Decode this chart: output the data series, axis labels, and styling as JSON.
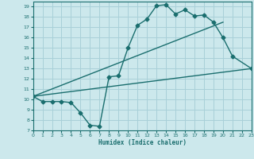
{
  "xlabel": "Humidex (Indice chaleur)",
  "bg_color": "#cce8ec",
  "grid_color": "#a8d0d8",
  "line_color": "#1a6e6e",
  "xlim": [
    0,
    23
  ],
  "ylim": [
    7,
    19.5
  ],
  "xticks": [
    0,
    1,
    2,
    3,
    4,
    5,
    6,
    7,
    8,
    9,
    10,
    11,
    12,
    13,
    14,
    15,
    16,
    17,
    18,
    19,
    20,
    21,
    22,
    23
  ],
  "yticks": [
    7,
    8,
    9,
    10,
    11,
    12,
    13,
    14,
    15,
    16,
    17,
    18,
    19
  ],
  "line1_x": [
    0,
    1,
    2,
    3,
    4,
    5,
    6,
    7,
    8,
    9,
    10,
    11,
    12,
    13,
    14,
    15,
    16,
    17,
    18,
    19,
    20,
    21,
    23
  ],
  "line1_y": [
    10.3,
    9.8,
    9.8,
    9.8,
    9.7,
    8.7,
    7.5,
    7.4,
    12.2,
    12.3,
    15.0,
    17.2,
    17.8,
    19.1,
    19.2,
    18.3,
    18.7,
    18.1,
    18.2,
    17.5,
    16.0,
    14.2,
    13.0
  ],
  "line2_x": [
    0,
    23
  ],
  "line2_y": [
    10.3,
    13.0
  ],
  "line3_x": [
    0,
    20
  ],
  "line3_y": [
    10.3,
    17.5
  ]
}
